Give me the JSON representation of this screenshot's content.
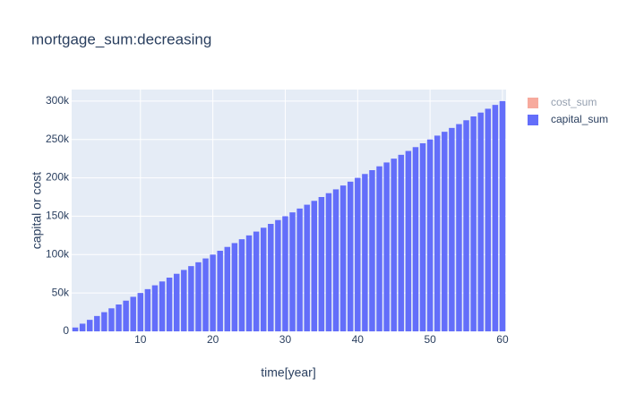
{
  "chart_data": {
    "type": "bar",
    "title": "mortgage_sum:decreasing",
    "x_label": "time[year]",
    "y_label": "capital or cost",
    "x": [
      1,
      2,
      3,
      4,
      5,
      6,
      7,
      8,
      9,
      10,
      11,
      12,
      13,
      14,
      15,
      16,
      17,
      18,
      19,
      20,
      21,
      22,
      23,
      24,
      25,
      26,
      27,
      28,
      29,
      30,
      31,
      32,
      33,
      34,
      35,
      36,
      37,
      38,
      39,
      40,
      41,
      42,
      43,
      44,
      45,
      46,
      47,
      48,
      49,
      50,
      51,
      52,
      53,
      54,
      55,
      56,
      57,
      58,
      59,
      60
    ],
    "series": [
      {
        "name": "cost_sum",
        "color": "#ef553b",
        "visible": "legendonly"
      },
      {
        "name": "capital_sum",
        "color": "#636efa",
        "values": [
          5000,
          10000,
          15000,
          20000,
          25000,
          30000,
          35000,
          40000,
          45000,
          50000,
          55000,
          60000,
          65000,
          70000,
          75000,
          80000,
          85000,
          90000,
          95000,
          100000,
          105000,
          110000,
          115000,
          120000,
          125000,
          130000,
          135000,
          140000,
          145000,
          150000,
          155000,
          160000,
          165000,
          170000,
          175000,
          180000,
          185000,
          190000,
          195000,
          200000,
          205000,
          210000,
          215000,
          220000,
          225000,
          230000,
          235000,
          240000,
          245000,
          250000,
          255000,
          260000,
          265000,
          270000,
          275000,
          280000,
          285000,
          290000,
          295000,
          300000
        ]
      }
    ],
    "xlim": [
      0.5,
      60.5
    ],
    "xticks": [
      10,
      20,
      30,
      40,
      50,
      60
    ],
    "ylim": [
      0,
      315000
    ],
    "yticks": [
      0,
      {
        "value": 50000,
        "label": "50k"
      },
      {
        "value": 100000,
        "label": "100k"
      },
      {
        "value": 150000,
        "label": "150k"
      },
      {
        "value": 200000,
        "label": "200k"
      },
      {
        "value": 250000,
        "label": "250k"
      },
      {
        "value": 300000,
        "label": "300k"
      }
    ],
    "grid": true
  }
}
